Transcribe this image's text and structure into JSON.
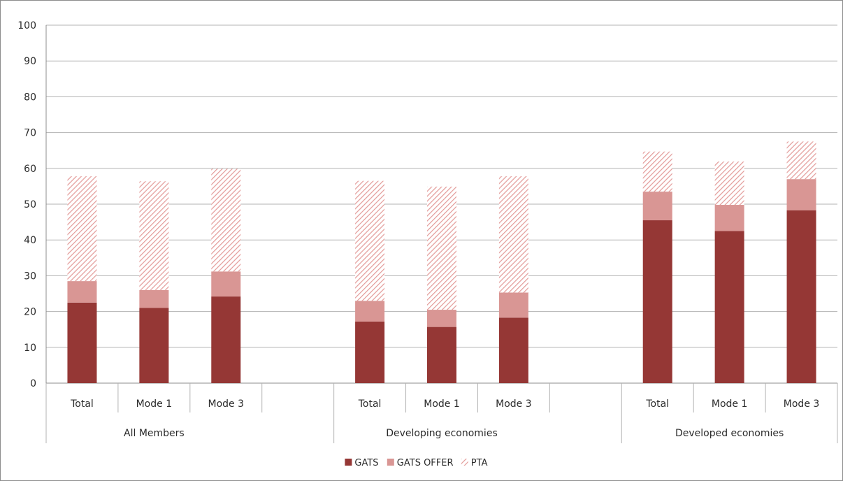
{
  "chart_data": {
    "type": "bar",
    "stacked": true,
    "ylim": [
      0,
      100
    ],
    "yticks": [
      0,
      10,
      20,
      30,
      40,
      50,
      60,
      70,
      80,
      90,
      100
    ],
    "grid": true,
    "legend_position": "bottom",
    "groups": [
      {
        "label": "All Members",
        "categories": [
          "Total",
          "Mode 1",
          "Mode 3"
        ]
      },
      {
        "label": "Developing economies",
        "categories": [
          "Total",
          "Mode 1",
          "Mode 3"
        ]
      },
      {
        "label": "Developed economies",
        "categories": [
          "Total",
          "Mode 1",
          "Mode 3"
        ]
      }
    ],
    "series": [
      {
        "name": "GATS",
        "color": "#953735",
        "pattern": "solid",
        "values": [
          22.5,
          21.0,
          24.2,
          17.2,
          15.7,
          18.3,
          45.5,
          42.5,
          48.3
        ]
      },
      {
        "name": "GATS OFFER",
        "color": "#d99694",
        "pattern": "solid",
        "values": [
          6.0,
          5.0,
          7.0,
          5.8,
          4.8,
          7.0,
          8.0,
          7.3,
          8.7
        ]
      },
      {
        "name": "PTA",
        "color": "#e6a6a4",
        "pattern": "hatch",
        "values": [
          29.3,
          30.4,
          28.7,
          33.5,
          34.4,
          32.5,
          11.2,
          12.1,
          10.5
        ]
      }
    ]
  }
}
